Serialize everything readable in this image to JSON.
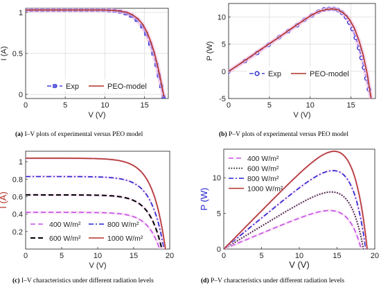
{
  "captions": {
    "a": {
      "tag": "(a)",
      "text": "I–V plots of experimental versus PEO model"
    },
    "b": {
      "tag": "(b)",
      "text": "P–V plots of experimental versus PEO model"
    },
    "c": {
      "tag": "(c)",
      "text": "I–V characteristics under different radiation levels"
    },
    "d": {
      "tag": "(d)",
      "text": "P–V characteristics under different radiation levels"
    }
  },
  "colors": {
    "blue": "#2020d0",
    "brown": "#b03028",
    "magenta": "#c64fe8",
    "black": "#000000",
    "purple": "#8a2be2"
  },
  "chart_data": [
    {
      "id": "a",
      "type": "line",
      "title": "",
      "xlabel": "V (V)",
      "ylabel": "I (A)",
      "xlim": [
        0,
        18
      ],
      "ylim": [
        -0.05,
        1.05
      ],
      "xticks": [
        0,
        5,
        10,
        15
      ],
      "yticks": [
        0,
        0.5,
        1
      ],
      "ytick_labels": [
        "0",
        "0.5",
        "1"
      ],
      "grid": true,
      "legend": "bottom-center",
      "series": [
        {
          "name": "Exp",
          "style": "dash-square",
          "x": [
            0,
            0.7,
            1.4,
            2.1,
            2.8,
            3.5,
            4.2,
            4.9,
            5.6,
            6.3,
            7.0,
            7.7,
            8.4,
            9.1,
            9.8,
            10.5,
            11.2,
            11.9,
            12.6,
            13.3,
            14.0,
            14.7,
            15.2,
            15.7,
            16.1,
            16.5,
            16.8,
            17.1,
            17.4
          ],
          "y": [
            1.03,
            1.03,
            1.03,
            1.03,
            1.03,
            1.03,
            1.03,
            1.03,
            1.03,
            1.03,
            1.03,
            1.03,
            1.03,
            1.03,
            1.03,
            1.025,
            1.02,
            1.01,
            0.99,
            0.96,
            0.91,
            0.83,
            0.74,
            0.62,
            0.5,
            0.36,
            0.23,
            0.1,
            -0.03
          ]
        },
        {
          "name": "PEO-model",
          "style": "solid",
          "x": [
            0,
            2,
            4,
            6,
            8,
            10,
            11,
            12,
            12.8,
            13.5,
            14.2,
            14.8,
            15.3,
            15.8,
            16.2,
            16.6,
            16.9,
            17.2,
            17.45
          ],
          "y": [
            1.03,
            1.03,
            1.03,
            1.03,
            1.03,
            1.03,
            1.025,
            1.015,
            1.0,
            0.97,
            0.92,
            0.85,
            0.76,
            0.64,
            0.52,
            0.37,
            0.24,
            0.1,
            -0.03
          ]
        }
      ]
    },
    {
      "id": "b",
      "type": "line",
      "title": "",
      "xlabel": "V (V)",
      "ylabel": "P (W)",
      "xlim": [
        0,
        18
      ],
      "ylim": [
        -5,
        12.5
      ],
      "xticks": [
        0,
        5,
        10,
        15
      ],
      "yticks": [
        -5,
        0,
        5,
        10
      ],
      "grid": true,
      "legend": "bottom-center",
      "series": [
        {
          "name": "Exp",
          "style": "dash-circle",
          "x": [
            0,
            2,
            3.5,
            4.9,
            6.2,
            7.3,
            8.4,
            9.3,
            10.2,
            11.0,
            11.7,
            12.3,
            12.9,
            13.4,
            13.9,
            14.4,
            14.8,
            15.2,
            15.6,
            16.0,
            16.3,
            16.6,
            16.9,
            17.2,
            17.5
          ],
          "y": [
            0,
            1.9,
            3.4,
            4.9,
            6.3,
            7.4,
            8.5,
            9.5,
            10.3,
            11.0,
            11.4,
            11.5,
            11.5,
            11.3,
            10.8,
            10.0,
            9.0,
            7.8,
            6.2,
            4.3,
            2.5,
            0.7,
            -1.3,
            -3.3,
            -5.3
          ]
        },
        {
          "name": "PEO-model",
          "style": "solid",
          "x": [
            0,
            2,
            4,
            6,
            8,
            10,
            11,
            12,
            12.8,
            13.5,
            14.2,
            14.8,
            15.4,
            16.0,
            16.5,
            17.0,
            17.5
          ],
          "y": [
            0,
            2.0,
            4.1,
            6.1,
            8.2,
            10.2,
            11.0,
            11.4,
            11.5,
            11.3,
            10.6,
            9.6,
            8.0,
            5.6,
            3.0,
            -0.5,
            -5.3
          ]
        }
      ]
    },
    {
      "id": "c",
      "type": "line",
      "title": "",
      "xlabel": "V (V)",
      "ylabel": "I (A)",
      "xlim": [
        0,
        20
      ],
      "ylim": [
        0,
        1.12
      ],
      "xticks": [
        0,
        5,
        10,
        15,
        20
      ],
      "yticks": [
        0.2,
        0.4,
        0.6,
        0.8,
        1
      ],
      "ytick_labels": [
        "0.2",
        "0.4",
        "0.6",
        "0.8",
        "1"
      ],
      "grid": false,
      "legend": "bottom",
      "series": [
        {
          "name": "400 W/m²",
          "style": "dash-magenta",
          "isc": 0.42,
          "voc": 18.6
        },
        {
          "name": "600 W/m²",
          "style": "dash-black",
          "isc": 0.62,
          "voc": 18.9
        },
        {
          "name": "800 W/m²",
          "style": "dashdot-blue",
          "isc": 0.83,
          "voc": 19.2
        },
        {
          "name": "1000 W/m²",
          "style": "solid-brown",
          "isc": 1.04,
          "voc": 19.4
        }
      ]
    },
    {
      "id": "d",
      "type": "line",
      "title": "",
      "xlabel": "V (V)",
      "ylabel": "P (W)",
      "xlim": [
        0,
        20
      ],
      "ylim": [
        0,
        14
      ],
      "xticks": [
        0,
        5,
        10,
        15,
        20
      ],
      "yticks": [
        0,
        5,
        10
      ],
      "grid": false,
      "legend": "top-left",
      "series": [
        {
          "name": "400 W/m²",
          "style": "dash-magenta",
          "peak_v": 14.5,
          "peak_p": 5.4,
          "voc": 18.2
        },
        {
          "name": "600 W/m²",
          "style": "dot-black",
          "peak_v": 14.7,
          "peak_p": 8.0,
          "voc": 18.5
        },
        {
          "name": "800 W/m²",
          "style": "dashdot-blue",
          "peak_v": 14.8,
          "peak_p": 11.0,
          "voc": 18.8
        },
        {
          "name": "1000 W/m²",
          "style": "solid-brown",
          "peak_v": 14.9,
          "peak_p": 13.7,
          "voc": 19.0
        }
      ]
    }
  ]
}
